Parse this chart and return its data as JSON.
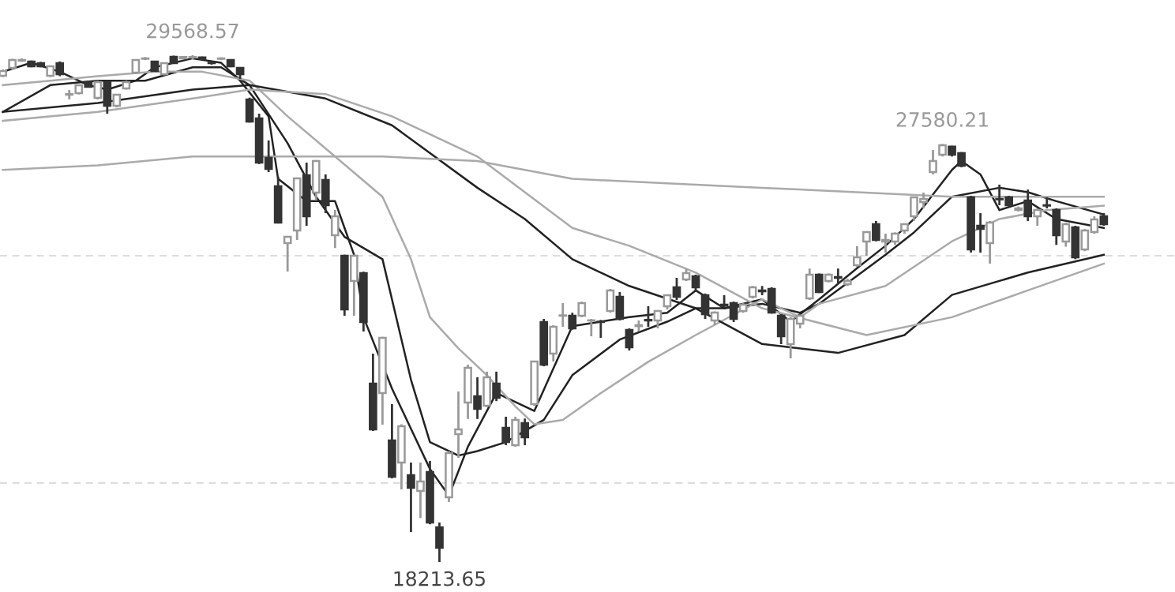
{
  "chart_data": {
    "type": "candlestick",
    "categories": [
      null,
      null,
      null,
      null,
      null,
      null,
      null,
      null,
      null,
      null,
      null,
      null,
      null,
      null,
      null,
      null,
      null,
      null,
      null,
      null,
      null,
      null,
      null,
      null,
      null,
      null,
      null,
      null,
      null,
      null,
      null,
      null,
      null,
      null,
      null,
      null,
      null,
      null,
      null,
      null,
      null,
      null,
      null,
      null,
      null,
      null,
      null,
      null,
      null,
      null,
      null,
      null,
      null,
      null,
      null,
      null,
      null,
      null,
      null,
      null,
      null,
      null,
      null,
      null,
      null,
      null,
      null,
      null,
      null,
      null,
      null,
      null,
      null,
      null,
      null,
      null,
      null,
      null,
      null,
      null,
      null,
      null,
      null,
      null,
      null,
      null,
      null,
      null,
      null,
      null,
      null,
      null,
      null,
      null,
      null,
      null,
      null,
      null,
      null,
      null,
      null,
      null,
      null,
      null,
      null,
      null,
      null,
      null,
      null,
      null,
      null,
      null,
      null,
      null,
      null,
      null,
      null
    ],
    "ohlc": [
      [
        29109,
        29250,
        29080,
        29215
      ],
      [
        29286,
        29490,
        29250,
        29463
      ],
      [
        29450,
        29500,
        29420,
        29463
      ],
      [
        29428,
        29450,
        29300,
        29321
      ],
      [
        29392,
        29420,
        29300,
        29321
      ],
      [
        29109,
        29340,
        29080,
        29321
      ],
      [
        29392,
        29430,
        29100,
        29145
      ],
      [
        28685,
        28790,
        28580,
        28700
      ],
      [
        28720,
        28900,
        28690,
        28897
      ],
      [
        28968,
        29000,
        28850,
        28862
      ],
      [
        28614,
        29000,
        28580,
        28968
      ],
      [
        28968,
        29000,
        28260,
        28437
      ],
      [
        28437,
        28700,
        28400,
        28685
      ],
      [
        28826,
        29000,
        28800,
        28968
      ],
      [
        29180,
        29470,
        29150,
        29463
      ],
      [
        29490,
        29530,
        29460,
        29498
      ],
      [
        29428,
        29440,
        29200,
        29215
      ],
      [
        29145,
        29400,
        29120,
        29392
      ],
      [
        29534,
        29560,
        29380,
        29392
      ],
      [
        29500,
        29540,
        29480,
        29530
      ],
      [
        29520,
        29568.57,
        29480,
        29530
      ],
      [
        29520,
        29540,
        29470,
        29490
      ],
      [
        29400,
        29440,
        29360,
        29392
      ],
      [
        29490,
        29520,
        29460,
        29498
      ],
      [
        29463,
        29480,
        29300,
        29321
      ],
      [
        29286,
        29300,
        29038,
        29145
      ],
      [
        28579,
        28620,
        28060,
        28083
      ],
      [
        28154,
        28260,
        27130,
        27164
      ],
      [
        27270,
        27660,
        26952,
        27022
      ],
      [
        26633,
        26850,
        25800,
        25820
      ],
      [
        25360,
        25520,
        24723,
        25502
      ],
      [
        25643,
        26830,
        25431,
        26810
      ],
      [
        26881,
        27164,
        25749,
        25961
      ],
      [
        26492,
        27220,
        26315,
        27199
      ],
      [
        26775,
        26900,
        26032,
        26209
      ],
      [
        25537,
        26103,
        25250,
        25961
      ],
      [
        25077,
        25100,
        23733,
        23874
      ],
      [
        24511,
        25100,
        23733,
        25077
      ],
      [
        24688,
        24720,
        23379,
        23592
      ],
      [
        22212,
        22884,
        21150,
        21186
      ],
      [
        22000,
        23260,
        21292,
        23238
      ],
      [
        20939,
        21752,
        20090,
        20125
      ],
      [
        20444,
        21300,
        19842,
        21257
      ],
      [
        20161,
        20444,
        18887,
        19878
      ],
      [
        19807,
        20444,
        19200,
        20019
      ],
      [
        20231,
        20480,
        19060,
        19100
      ],
      [
        18993,
        19100,
        18213.65,
        18534
      ],
      [
        19665,
        20700,
        19560,
        20656
      ],
      [
        21080,
        22035,
        20550,
        21186
      ],
      [
        21788,
        22637,
        21420,
        22566
      ],
      [
        21929,
        22354,
        21420,
        21646
      ],
      [
        21717,
        22480,
        21680,
        22354
      ],
      [
        22212,
        22480,
        21820,
        21894
      ],
      [
        21222,
        21470,
        20833,
        20903
      ],
      [
        20833,
        21470,
        20800,
        21399
      ],
      [
        21328,
        21430,
        20833,
        21009
      ],
      [
        21752,
        22707,
        21717,
        22707
      ],
      [
        23592,
        23662,
        22600,
        22637
      ],
      [
        22884,
        23520,
        22707,
        23485
      ],
      [
        23733,
        24016,
        23485,
        23740
      ],
      [
        23733,
        23800,
        23420,
        23450
      ],
      [
        23733,
        24050,
        23700,
        24016
      ],
      [
        23627,
        23662,
        23273,
        23630
      ],
      [
        23600,
        23640,
        23238,
        23592
      ],
      [
        23839,
        24334,
        23804,
        24299
      ],
      [
        24157,
        24264,
        23627,
        23662
      ],
      [
        23415,
        23450,
        22955,
        23026
      ],
      [
        23500,
        23627,
        23379,
        23521
      ],
      [
        23640,
        23945,
        23485,
        23627
      ],
      [
        23627,
        23860,
        23450,
        23839
      ],
      [
        23945,
        24193,
        23874,
        24193
      ],
      [
        24370,
        24582,
        24087,
        24157
      ],
      [
        24546,
        24790,
        24511,
        24688
      ],
      [
        24617,
        24653,
        24300,
        24370
      ],
      [
        24193,
        24230,
        23662,
        23768
      ],
      [
        23627,
        23830,
        23521,
        23804
      ],
      [
        23981,
        24193,
        23910,
        23960
      ],
      [
        24016,
        24050,
        23592,
        23662
      ],
      [
        23839,
        24016,
        23800,
        23981
      ],
      [
        24157,
        24400,
        24120,
        24370
      ],
      [
        24299,
        24400,
        24193,
        24280
      ],
      [
        24334,
        24370,
        23780,
        23804
      ],
      [
        23733,
        23760,
        23096,
        23273
      ],
      [
        23096,
        23700,
        22778,
        23662
      ],
      [
        23556,
        23760,
        23450,
        23733
      ],
      [
        24122,
        24790,
        24087,
        24653
      ],
      [
        24653,
        24680,
        24240,
        24264
      ],
      [
        24511,
        24680,
        24480,
        24653
      ],
      [
        24600,
        24790,
        24440,
        24582
      ],
      [
        24440,
        24560,
        24400,
        24511
      ],
      [
        24865,
        25290,
        24830,
        25042
      ],
      [
        25395,
        25620,
        25077,
        25608
      ],
      [
        25784,
        25855,
        25400,
        25431
      ],
      [
        25395,
        25572,
        25148,
        25431
      ],
      [
        25395,
        25600,
        25320,
        25572
      ],
      [
        25643,
        25800,
        25572,
        25784
      ],
      [
        25961,
        26390,
        25855,
        26386
      ],
      [
        26280,
        26492,
        26138,
        26350
      ],
      [
        26952,
        27447,
        26900,
        27199
      ],
      [
        27341,
        27580.21,
        27300,
        27553
      ],
      [
        27520,
        27540,
        27300,
        27341
      ],
      [
        27376,
        27400,
        27060,
        27093
      ],
      [
        26386,
        26420,
        25148,
        25218
      ],
      [
        25749,
        26032,
        25148,
        25678
      ],
      [
        25360,
        25855,
        24900,
        25820
      ],
      [
        26350,
        26670,
        26209,
        26340
      ],
      [
        26386,
        26420,
        26180,
        26209
      ],
      [
        26103,
        26180,
        26070,
        26138
      ],
      [
        26315,
        26560,
        25855,
        25961
      ],
      [
        25961,
        26140,
        25749,
        26103
      ],
      [
        26209,
        26386,
        26138,
        26200
      ],
      [
        26103,
        26140,
        25320,
        25537
      ],
      [
        25395,
        25820,
        25280,
        25784
      ],
      [
        25714,
        25749,
        25000,
        25042
      ],
      [
        25218,
        25680,
        25180,
        25643
      ],
      [
        25608,
        25961,
        25570,
        25891
      ],
      [
        25961,
        26032,
        25749,
        25784
      ]
    ],
    "series": [
      {
        "type": "line",
        "color": "#222222",
        "values": [
          29200,
          null,
          null,
          29400,
          null,
          null,
          29200,
          null,
          null,
          28900,
          null,
          28800,
          null,
          null,
          29000,
          null,
          29300,
          null,
          null,
          null,
          29500,
          null,
          null,
          29400,
          null,
          29000,
          null,
          null,
          28200,
          26800,
          null,
          null,
          26300,
          null,
          null,
          26300,
          25700,
          25100,
          23700,
          null,
          null,
          22100,
          null,
          null,
          null,
          20300,
          null,
          19700,
          null,
          20800,
          null,
          null,
          22000,
          null,
          null,
          null,
          21600,
          null,
          null,
          null,
          23500,
          null,
          null,
          23600,
          null,
          null,
          23700,
          null,
          null,
          null,
          23800,
          null,
          null,
          24300,
          null,
          null,
          23900,
          null,
          null,
          null,
          24100,
          null,
          null,
          23600,
          null,
          null,
          24100,
          null,
          null,
          null,
          24800,
          null,
          null,
          25300,
          null,
          null,
          25900,
          null,
          null,
          null,
          27000,
          27200,
          null,
          26900,
          null,
          26100,
          null,
          null,
          26300,
          null,
          null,
          25900,
          null,
          null,
          null,
          null,
          25700
        ]
      },
      {
        "type": "line",
        "color": "#222222",
        "values": [
          28300,
          null,
          null,
          null,
          null,
          28900,
          null,
          null,
          null,
          null,
          29000,
          null,
          null,
          null,
          null,
          29000,
          null,
          null,
          null,
          null,
          29300,
          null,
          null,
          29300,
          null,
          null,
          28900,
          null,
          null,
          null,
          27600,
          null,
          null,
          26400,
          null,
          null,
          25500,
          null,
          null,
          null,
          25000,
          null,
          null,
          22300,
          null,
          20900,
          null,
          null,
          20600,
          null,
          20700,
          null,
          null,
          20900,
          null,
          null,
          null,
          21400,
          null,
          null,
          22400,
          null,
          null,
          null,
          null,
          23200,
          null,
          null,
          null,
          null,
          23600,
          null,
          null,
          23900,
          null,
          null,
          23900,
          null,
          null,
          null,
          24000,
          null,
          null,
          null,
          23800,
          null,
          24000,
          null,
          null,
          null,
          null,
          null,
          null,
          25100,
          null,
          null,
          25600,
          null,
          null,
          null,
          26400,
          null,
          null,
          null,
          null,
          26600,
          null,
          null,
          26500,
          null,
          null,
          26300,
          null,
          null,
          null,
          null,
          26000
        ]
      },
      {
        "type": "line",
        "color": "#aaaaaa",
        "values": [
          28900,
          null,
          null,
          null,
          null,
          29000,
          null,
          null,
          null,
          null,
          29100,
          null,
          null,
          null,
          null,
          null,
          29200,
          null,
          null,
          null,
          null,
          29200,
          null,
          null,
          null,
          null,
          29000,
          null,
          null,
          null,
          28200,
          null,
          null,
          null,
          null,
          27300,
          null,
          null,
          null,
          null,
          26400,
          null,
          null,
          25000,
          null,
          23700,
          null,
          null,
          23000,
          null,
          null,
          22400,
          null,
          null,
          21700,
          null,
          21300,
          null,
          null,
          21400,
          null,
          null,
          null,
          22000,
          null,
          null,
          null,
          null,
          22700,
          null,
          null,
          null,
          null,
          23300,
          null,
          null,
          null,
          null,
          null,
          null,
          24100,
          null,
          null,
          null,
          23700,
          null,
          24000,
          null,
          null,
          null,
          null,
          null,
          null,
          24400,
          null,
          null,
          null,
          null,
          null,
          null,
          25400,
          null,
          null,
          null,
          null,
          25900,
          null,
          null,
          null,
          null,
          26100,
          null,
          null,
          null,
          null,
          null,
          26200
        ]
      },
      {
        "type": "line",
        "color": "#222222",
        "values": [
          28300,
          null,
          null,
          null,
          null,
          null,
          null,
          null,
          null,
          null,
          28500,
          null,
          null,
          null,
          null,
          null,
          null,
          null,
          null,
          null,
          28800,
          null,
          null,
          null,
          null,
          null,
          28900,
          null,
          null,
          null,
          null,
          null,
          null,
          null,
          28600,
          null,
          null,
          null,
          null,
          null,
          null,
          28000,
          null,
          null,
          null,
          null,
          null,
          null,
          null,
          null,
          26600,
          null,
          null,
          null,
          null,
          25900,
          null,
          null,
          null,
          null,
          25000,
          null,
          null,
          null,
          null,
          null,
          24400,
          null,
          null,
          null,
          null,
          null,
          null,
          23900,
          null,
          null,
          null,
          null,
          null,
          null,
          23100,
          null,
          null,
          null,
          null,
          null,
          null,
          null,
          22900,
          null,
          null,
          null,
          null,
          null,
          null,
          23300,
          null,
          null,
          null,
          null,
          24200,
          null,
          null,
          null,
          null,
          null,
          null,
          null,
          24700,
          null,
          null,
          null,
          null,
          null,
          null,
          null,
          25100
        ]
      },
      {
        "type": "line",
        "color": "#aaaaaa",
        "values": [
          28100,
          null,
          null,
          null,
          null,
          null,
          null,
          null,
          null,
          null,
          28300,
          null,
          null,
          null,
          null,
          null,
          null,
          null,
          null,
          null,
          28600,
          null,
          null,
          null,
          null,
          null,
          28800,
          null,
          null,
          null,
          null,
          null,
          null,
          null,
          28700,
          null,
          null,
          null,
          null,
          null,
          null,
          28200,
          null,
          null,
          null,
          null,
          null,
          null,
          null,
          null,
          27300,
          null,
          null,
          null,
          null,
          null,
          null,
          null,
          null,
          null,
          25700,
          null,
          null,
          null,
          null,
          null,
          25300,
          null,
          null,
          null,
          null,
          null,
          null,
          24700,
          null,
          null,
          null,
          null,
          null,
          null,
          23900,
          null,
          null,
          null,
          null,
          null,
          null,
          null,
          null,
          null,
          null,
          23300,
          null,
          null,
          null,
          null,
          null,
          null,
          null,
          null,
          23700,
          null,
          null,
          null,
          null,
          null,
          null,
          null,
          24300,
          null,
          null,
          null,
          null,
          null,
          null,
          null,
          24900
        ]
      },
      {
        "type": "line",
        "color": "#aaaaaa",
        "values": [
          27000,
          null,
          null,
          null,
          null,
          null,
          null,
          null,
          null,
          null,
          27100,
          null,
          null,
          null,
          null,
          null,
          null,
          null,
          null,
          null,
          27300,
          null,
          null,
          null,
          null,
          null,
          null,
          null,
          null,
          null,
          27300,
          null,
          null,
          null,
          null,
          null,
          null,
          null,
          null,
          null,
          27300,
          null,
          null,
          null,
          null,
          null,
          null,
          null,
          null,
          null,
          27200,
          null,
          null,
          null,
          null,
          null,
          null,
          null,
          null,
          null,
          26800,
          null,
          null,
          null,
          null,
          null,
          null,
          null,
          null,
          null,
          26700,
          null,
          null,
          null,
          null,
          null,
          null,
          null,
          null,
          null,
          26600,
          null,
          null,
          null,
          null,
          null,
          null,
          null,
          null,
          null,
          26500,
          null,
          null,
          null,
          null,
          null,
          null,
          null,
          null,
          null,
          26400,
          null,
          null,
          null,
          null,
          null,
          null,
          null,
          null,
          null,
          null,
          null,
          null,
          null,
          null,
          null,
          26400
        ]
      }
    ],
    "ylim": [
      17543,
      30807
    ],
    "yticks": [
      {
        "value": 19984,
        "label": null
      },
      {
        "value": 25077,
        "label": null
      }
    ],
    "grid": "y",
    "annotations": [
      {
        "text": "29568.57",
        "y": 29568.57
      },
      {
        "text": "27580.21",
        "y": 27580.21
      },
      {
        "text": "18213.65",
        "y": 18213.65
      }
    ]
  }
}
